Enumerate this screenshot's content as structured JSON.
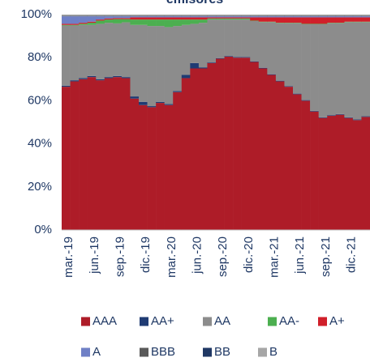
{
  "chart_data": {
    "type": "bar",
    "stacked": true,
    "title": "emisores",
    "categories": [
      "mar.-19",
      null,
      null,
      "jun.-19",
      null,
      null,
      "sep.-19",
      null,
      null,
      "dic.-19",
      null,
      null,
      "mar.-20",
      null,
      null,
      "jun.-20",
      null,
      null,
      "sep.-20",
      null,
      null,
      "dic.-20",
      null,
      null,
      "mar.-21",
      null,
      null,
      "jun.-21",
      null,
      null,
      "sep.-21",
      null,
      null,
      "dic.-21",
      null,
      null
    ],
    "series": [
      {
        "name": "AAA",
        "color": "#ae1c28",
        "values": [
          66.5,
          69,
          70,
          71,
          69.5,
          70.5,
          71,
          70.5,
          61,
          58,
          57,
          59,
          58,
          64,
          70.5,
          75,
          75,
          77.5,
          79.5,
          80.5,
          80,
          80,
          78,
          75,
          72,
          69,
          66.5,
          63,
          60,
          55,
          52,
          53,
          53.5,
          52,
          51,
          52.5
        ]
      },
      {
        "name": "AA+",
        "color": "#1f3b73",
        "values": [
          0.5,
          0.5,
          0.5,
          0.5,
          0.5,
          0.5,
          0.5,
          0.5,
          1,
          1.5,
          0.5,
          0.5,
          0.5,
          0.5,
          1.5,
          2.5,
          0.5,
          0.3,
          0.3,
          0.3,
          0.3,
          0.3,
          0.3,
          0.3,
          0.3,
          0.3,
          0.3,
          0.3,
          0.3,
          0.3,
          0.3,
          0.3,
          0.3,
          0.3,
          0.3,
          0.3
        ]
      },
      {
        "name": "AA",
        "color": "#8c8c8c",
        "values": [
          27.9,
          25.4,
          24.7,
          23.7,
          25.7,
          25.2,
          24.4,
          25.4,
          33.2,
          35.7,
          37.2,
          35.2,
          35.7,
          30.2,
          23.2,
          18.2,
          20.7,
          19.9,
          17.9,
          16.9,
          17.4,
          17.4,
          18.7,
          21.2,
          24.2,
          26.7,
          29.2,
          32.7,
          35.2,
          40.2,
          43.2,
          42.7,
          42.2,
          44.2,
          45.2,
          43.7
        ]
      },
      {
        "name": "AA-",
        "color": "#4caf50",
        "values": [
          0.3,
          0.3,
          0.5,
          1,
          1.5,
          1.5,
          2,
          1.5,
          2.5,
          2.5,
          3,
          3,
          3.5,
          3,
          2.5,
          2,
          1.5,
          0.5,
          0.5,
          0.5,
          0.5,
          0.5,
          0.2,
          0.2,
          0.2,
          0.2,
          0.2,
          0.2,
          0.2,
          0.2,
          0.2,
          0.2,
          0.2,
          0.2,
          0.2,
          0.2
        ]
      },
      {
        "name": "A+",
        "color": "#d01f2a",
        "values": [
          0.5,
          0.5,
          0.5,
          0.5,
          0.5,
          0.5,
          0.5,
          0.5,
          1,
          1,
          1,
          1,
          1,
          1,
          1,
          1,
          1,
          0.5,
          0.5,
          0.5,
          0.5,
          0.5,
          1.5,
          2,
          2,
          2.5,
          2.5,
          2.5,
          3,
          3,
          3,
          2.5,
          2.5,
          2,
          2,
          2
        ]
      },
      {
        "name": "A",
        "color": "#6f80c6",
        "values": [
          3.5,
          3.5,
          3,
          2.5,
          1.5,
          1,
          0.8,
          0.8,
          0.5,
          0.5,
          0.5,
          0.5,
          0.5,
          0.5,
          0.5,
          0.5,
          0.5,
          0.5,
          0.5,
          0.5,
          0.5,
          0.5,
          0.5,
          0.5,
          0.5,
          0.5,
          0.5,
          0.5,
          0.5,
          0.5,
          0.5,
          0.5,
          0.5,
          0.5,
          0.5,
          0.5
        ]
      },
      {
        "name": "BBB",
        "color": "#595959",
        "values": [
          0.2,
          0.2,
          0.2,
          0.2,
          0.2,
          0.2,
          0.2,
          0.2,
          0.2,
          0.2,
          0.2,
          0.2,
          0.2,
          0.2,
          0.2,
          0.2,
          0.2,
          0.2,
          0.2,
          0.2,
          0.2,
          0.2,
          0.2,
          0.2,
          0.2,
          0.2,
          0.2,
          0.2,
          0.2,
          0.2,
          0.2,
          0.2,
          0.2,
          0.2,
          0.2,
          0.2
        ]
      },
      {
        "name": "BB",
        "color": "#203864",
        "values": [
          0.1,
          0.1,
          0.1,
          0.1,
          0.1,
          0.1,
          0.1,
          0.1,
          0.1,
          0.1,
          0.1,
          0.1,
          0.1,
          0.1,
          0.1,
          0.1,
          0.1,
          0.1,
          0.1,
          0.1,
          0.1,
          0.1,
          0.1,
          0.1,
          0.1,
          0.1,
          0.1,
          0.1,
          0.1,
          0.1,
          0.1,
          0.1,
          0.1,
          0.1,
          0.1,
          0.1
        ]
      },
      {
        "name": "B",
        "color": "#a6a6a6",
        "values": [
          0.5,
          0.5,
          0.5,
          0.5,
          0.5,
          0.5,
          0.5,
          0.5,
          0.5,
          0.5,
          0.5,
          0.5,
          0.5,
          0.5,
          0.5,
          0.5,
          0.5,
          0.5,
          0.5,
          0.5,
          0.5,
          0.5,
          0.5,
          0.5,
          0.5,
          0.5,
          0.5,
          0.5,
          0.5,
          0.5,
          0.5,
          0.5,
          0.5,
          0.5,
          0.5,
          0.5
        ]
      }
    ],
    "ylim": [
      0,
      100
    ],
    "yticks": [
      {
        "value": 0,
        "label": "0%"
      },
      {
        "value": 20,
        "label": "20%"
      },
      {
        "value": 40,
        "label": "40%"
      },
      {
        "value": 60,
        "label": "60%"
      },
      {
        "value": 80,
        "label": "80%"
      },
      {
        "value": 100,
        "label": "100%"
      }
    ],
    "legend": "bottom"
  }
}
